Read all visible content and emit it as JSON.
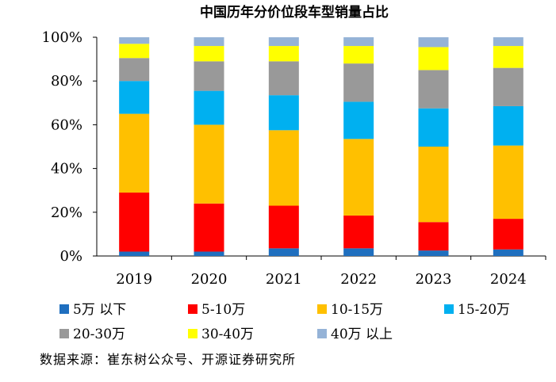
{
  "chart_data": {
    "type": "bar",
    "stacked": true,
    "title": "中国历年分价位段车型销量占比",
    "categories": [
      "2019",
      "2020",
      "2021",
      "2022",
      "2023",
      "2024"
    ],
    "ylim": [
      0,
      100
    ],
    "yticks": [
      "0%",
      "20%",
      "40%",
      "60%",
      "80%",
      "100%"
    ],
    "xlabel": "",
    "ylabel": "",
    "series": [
      {
        "name": "5万 以下",
        "color": "#1F6FBF",
        "values": [
          2,
          2,
          3.5,
          3.5,
          2.5,
          3
        ]
      },
      {
        "name": "5-10万",
        "color": "#FF0000",
        "values": [
          27,
          22,
          19.5,
          15,
          13,
          14
        ]
      },
      {
        "name": "10-15万",
        "color": "#FFC000",
        "values": [
          36,
          36,
          34.5,
          35,
          34.5,
          33.5
        ]
      },
      {
        "name": "15-20万",
        "color": "#00B0F0",
        "values": [
          15,
          15.5,
          16,
          17,
          17.5,
          18
        ]
      },
      {
        "name": "20-30万",
        "color": "#999999",
        "values": [
          10.5,
          13.5,
          15.5,
          17.5,
          17.5,
          17.5
        ]
      },
      {
        "name": "30-40万",
        "color": "#FFFF00",
        "values": [
          6.5,
          7,
          7,
          8,
          10.5,
          10
        ]
      },
      {
        "name": "40万 以上",
        "color": "#95B3D7",
        "values": [
          3,
          4,
          4,
          4,
          4.5,
          4
        ]
      }
    ]
  },
  "source_text": "数据来源：崔东树公众号、开源证券研究所"
}
